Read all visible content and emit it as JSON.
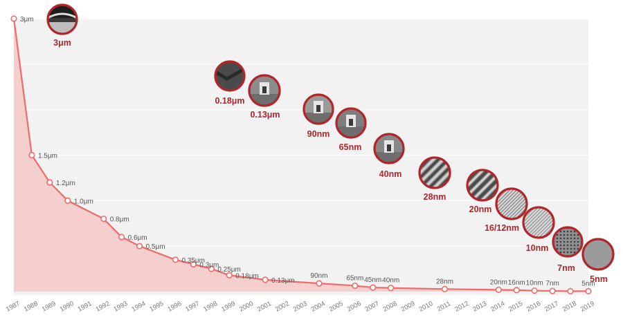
{
  "chart_data": {
    "type": "area",
    "title": "",
    "xlabel": "",
    "ylabel": "",
    "x": [
      "1987",
      "1988",
      "1989",
      "1990",
      "1991",
      "1992",
      "1993",
      "1994",
      "1995",
      "1996",
      "1997",
      "1998",
      "1999",
      "2000",
      "2001",
      "2002",
      "2003",
      "2004",
      "2005",
      "2006",
      "2007",
      "2008",
      "2009",
      "2010",
      "2011",
      "2012",
      "2013",
      "2014",
      "2015",
      "2016",
      "2017",
      "2018",
      "2019"
    ],
    "xlim": [
      1987,
      2019
    ],
    "ylim_um": [
      0,
      3
    ],
    "grid": "horizontal",
    "legend": "none",
    "colors": {
      "line": "#f06a6a",
      "fill": "#f6c8c8",
      "plot_bg": "#f2f2f2",
      "grid": "#ffffff",
      "node_border": "#b0262b",
      "node_label": "#b0262b"
    },
    "points": [
      {
        "year": 1987,
        "value_um": 3.0,
        "label": "3μm"
      },
      {
        "year": 1988,
        "value_um": 1.5,
        "label": "1.5μm"
      },
      {
        "year": 1989,
        "value_um": 1.2,
        "label": "1.2μm"
      },
      {
        "year": 1990,
        "value_um": 1.0,
        "label": "1.0μm"
      },
      {
        "year": 1992,
        "value_um": 0.8,
        "label": "0.8μm"
      },
      {
        "year": 1993,
        "value_um": 0.6,
        "label": "0.6μm"
      },
      {
        "year": 1994,
        "value_um": 0.5,
        "label": "0.5μm"
      },
      {
        "year": 1996,
        "value_um": 0.35,
        "label": "0.35μm"
      },
      {
        "year": 1997,
        "value_um": 0.3,
        "label": "0.3μm"
      },
      {
        "year": 1998,
        "value_um": 0.25,
        "label": "0.25μm"
      },
      {
        "year": 1999,
        "value_um": 0.18,
        "label": "0.18μm"
      },
      {
        "year": 2001,
        "value_um": 0.13,
        "label": "0.13μm"
      },
      {
        "year": 2004,
        "value_um": 0.09,
        "label": "90nm"
      },
      {
        "year": 2006,
        "value_um": 0.065,
        "label": "65nm"
      },
      {
        "year": 2007,
        "value_um": 0.045,
        "label": "45nm"
      },
      {
        "year": 2008,
        "value_um": 0.04,
        "label": "40nm"
      },
      {
        "year": 2011,
        "value_um": 0.028,
        "label": "28nm"
      },
      {
        "year": 2014,
        "value_um": 0.02,
        "label": "20nm"
      },
      {
        "year": 2015,
        "value_um": 0.016,
        "label": "16nm"
      },
      {
        "year": 2016,
        "value_um": 0.01,
        "label": "10nm"
      },
      {
        "year": 2017,
        "value_um": 0.007,
        "label": "7nm"
      },
      {
        "year": 2018,
        "value_um": 0.005,
        "label": ""
      },
      {
        "year": 2019,
        "value_um": 0.005,
        "label": "5nm"
      }
    ],
    "process_nodes": [
      {
        "label": "3μm",
        "icon": "trench-cross-section-icon",
        "tone": "#3a3a3a"
      },
      {
        "label": "0.18μm",
        "icon": "dark-trench-icon",
        "tone": "#4a4a4a"
      },
      {
        "label": "0.13μm",
        "icon": "gate-pillar-icon",
        "tone": "#8c8c8c"
      },
      {
        "label": "90nm",
        "icon": "gate-pillar-icon",
        "tone": "#9a9a9a"
      },
      {
        "label": "65nm",
        "icon": "gate-pillar-icon",
        "tone": "#7e7e7e"
      },
      {
        "label": "40nm",
        "icon": "gate-pillar-icon",
        "tone": "#888888"
      },
      {
        "label": "28nm",
        "icon": "fin-array-icon",
        "tone": "#8a8a8a"
      },
      {
        "label": "20nm",
        "icon": "fin-array-icon",
        "tone": "#707070"
      },
      {
        "label": "16/12nm",
        "icon": "fin-grid-icon",
        "tone": "#999999"
      },
      {
        "label": "10nm",
        "icon": "fin-grid-icon",
        "tone": "#a5a5a5"
      },
      {
        "label": "7nm",
        "icon": "dense-grid-icon",
        "tone": "#8f8f8f"
      },
      {
        "label": "5nm",
        "icon": "gray-disc-icon",
        "tone": "#9b9b9b"
      }
    ]
  }
}
